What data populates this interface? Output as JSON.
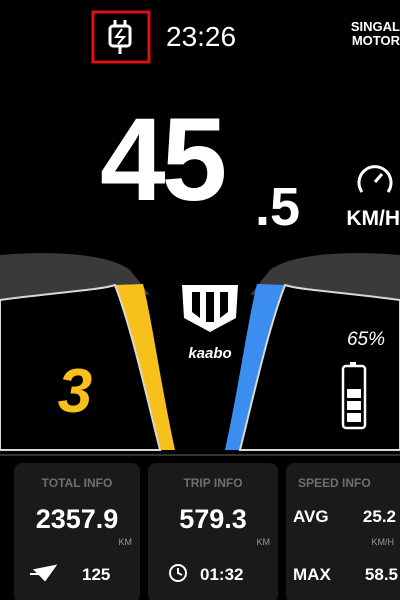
{
  "status_bar": {
    "time": "23:26",
    "brand": [
      "SINGAL",
      "MOTOR"
    ]
  },
  "speed": {
    "integer": "45",
    "decimal": ".5",
    "unit": "KM/H"
  },
  "logo": "kaabo",
  "gear": "3",
  "battery": "65%",
  "panels": [
    {
      "title": "TOTAL INFO",
      "value": "2357.9",
      "unit": "KM",
      "footer": "125"
    },
    {
      "title": "TRIP INFO",
      "value": "579.3",
      "unit": "KM",
      "footer": "01:32"
    },
    {
      "title": "SPEED INFO",
      "avg_label": "AVG",
      "avg": "25.2",
      "unit": "KM/H",
      "max_label": "MAX",
      "max": "58.5"
    }
  ]
}
